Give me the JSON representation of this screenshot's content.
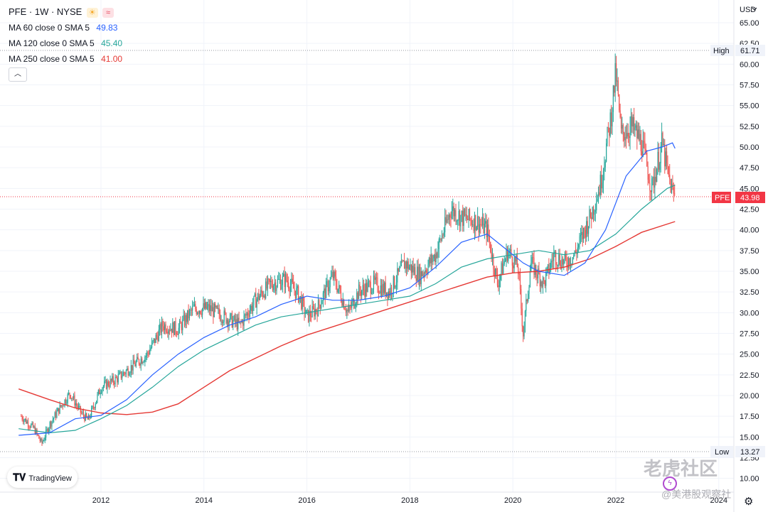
{
  "header": {
    "symbol_line": "PFE · 1W · NYSE",
    "ma": [
      {
        "label": "MA 60 close 0 SMA 5",
        "value": "49.83",
        "color": "#2962ff"
      },
      {
        "label": "MA 120 close 0 SMA 5",
        "value": "45.40",
        "color": "#26a69a"
      },
      {
        "label": "MA 250 close 0 SMA 5",
        "value": "41.00",
        "color": "#e53935"
      }
    ]
  },
  "currency": "USD",
  "price_scale": {
    "ticks": [
      "65.00",
      "62.50",
      "60.00",
      "57.50",
      "55.00",
      "52.50",
      "50.00",
      "47.50",
      "45.00",
      "42.50",
      "40.00",
      "37.50",
      "35.00",
      "32.50",
      "30.00",
      "27.50",
      "25.00",
      "22.50",
      "20.00",
      "17.50",
      "15.00",
      "12.50",
      "10.00"
    ],
    "high_label": "High",
    "high_value": "61.71",
    "low_label": "Low",
    "low_value": "13.27",
    "last_label": "PFE",
    "last_value": "43.98"
  },
  "time_scale": {
    "ticks": [
      "2012",
      "2014",
      "2016",
      "2018",
      "2020",
      "2022",
      "2024"
    ]
  },
  "brand": "TradingView",
  "watermark": {
    "line1": "老虎社区",
    "line2": "@美港股观察社"
  },
  "colors": {
    "up": "#26a69a",
    "down": "#ef5350",
    "ma60": "#2962ff",
    "ma120": "#26a69a",
    "ma250": "#e53935",
    "last": "#f23645"
  },
  "chart_data": {
    "type": "candlestick",
    "symbol": "PFE",
    "interval": "1W",
    "exchange": "NYSE",
    "currency": "USD",
    "ylim": [
      10,
      65
    ],
    "xlim": [
      2010.4,
      2024.4
    ],
    "close_path": [
      [
        2010.45,
        17.5
      ],
      [
        2010.7,
        16.0
      ],
      [
        2010.85,
        14.2
      ],
      [
        2011.0,
        16.5
      ],
      [
        2011.2,
        18.5
      ],
      [
        2011.4,
        20.3
      ],
      [
        2011.6,
        18.0
      ],
      [
        2011.75,
        17.0
      ],
      [
        2012.0,
        21.0
      ],
      [
        2012.3,
        22.0
      ],
      [
        2012.6,
        23.5
      ],
      [
        2012.9,
        25.0
      ],
      [
        2013.2,
        28.5
      ],
      [
        2013.5,
        28.0
      ],
      [
        2013.8,
        30.5
      ],
      [
        2014.1,
        30.5
      ],
      [
        2014.4,
        29.5
      ],
      [
        2014.7,
        28.5
      ],
      [
        2015.0,
        31.5
      ],
      [
        2015.3,
        33.5
      ],
      [
        2015.6,
        34.0
      ],
      [
        2015.85,
        32.0
      ],
      [
        2016.0,
        29.5
      ],
      [
        2016.2,
        30.5
      ],
      [
        2016.5,
        34.5
      ],
      [
        2016.8,
        30.0
      ],
      [
        2017.0,
        32.5
      ],
      [
        2017.3,
        33.5
      ],
      [
        2017.6,
        32.5
      ],
      [
        2017.9,
        36.0
      ],
      [
        2018.2,
        34.5
      ],
      [
        2018.5,
        37.0
      ],
      [
        2018.8,
        42.5
      ],
      [
        2019.0,
        41.5
      ],
      [
        2019.3,
        41.0
      ],
      [
        2019.5,
        40.0
      ],
      [
        2019.7,
        33.5
      ],
      [
        2019.9,
        37.5
      ],
      [
        2020.1,
        35.5
      ],
      [
        2020.2,
        27.5
      ],
      [
        2020.35,
        36.0
      ],
      [
        2020.6,
        33.5
      ],
      [
        2020.8,
        37.0
      ],
      [
        2021.0,
        36.0
      ],
      [
        2021.2,
        37.0
      ],
      [
        2021.5,
        41.5
      ],
      [
        2021.7,
        45.5
      ],
      [
        2021.9,
        53.5
      ],
      [
        2022.0,
        59.0
      ],
      [
        2022.1,
        51.5
      ],
      [
        2022.3,
        52.5
      ],
      [
        2022.5,
        50.5
      ],
      [
        2022.7,
        45.0
      ],
      [
        2022.9,
        50.5
      ],
      [
        2023.0,
        47.0
      ],
      [
        2023.1,
        44.5
      ],
      [
        2023.15,
        43.98
      ]
    ],
    "ma60_path": [
      [
        2010.4,
        15.2
      ],
      [
        2011.0,
        15.5
      ],
      [
        2011.5,
        17.2
      ],
      [
        2012.0,
        17.6
      ],
      [
        2012.5,
        19.5
      ],
      [
        2013.0,
        22.5
      ],
      [
        2013.5,
        25.0
      ],
      [
        2014.0,
        27.0
      ],
      [
        2014.5,
        28.5
      ],
      [
        2015.0,
        29.5
      ],
      [
        2015.5,
        31.0
      ],
      [
        2016.0,
        32.0
      ],
      [
        2016.5,
        31.5
      ],
      [
        2017.0,
        31.5
      ],
      [
        2017.5,
        32.0
      ],
      [
        2018.0,
        33.0
      ],
      [
        2018.5,
        35.5
      ],
      [
        2019.0,
        38.5
      ],
      [
        2019.5,
        39.5
      ],
      [
        2019.8,
        38.0
      ],
      [
        2020.2,
        36.0
      ],
      [
        2020.5,
        35.0
      ],
      [
        2021.0,
        34.5
      ],
      [
        2021.4,
        36.0
      ],
      [
        2021.8,
        40.0
      ],
      [
        2022.2,
        46.5
      ],
      [
        2022.6,
        49.5
      ],
      [
        2022.9,
        50.0
      ],
      [
        2023.1,
        50.5
      ],
      [
        2023.15,
        49.83
      ]
    ],
    "ma120_path": [
      [
        2010.4,
        16.0
      ],
      [
        2011.0,
        15.5
      ],
      [
        2011.5,
        15.8
      ],
      [
        2012.0,
        17.2
      ],
      [
        2012.5,
        18.8
      ],
      [
        2013.0,
        21.0
      ],
      [
        2013.5,
        23.5
      ],
      [
        2014.0,
        25.5
      ],
      [
        2014.5,
        27.0
      ],
      [
        2015.0,
        28.5
      ],
      [
        2015.5,
        29.5
      ],
      [
        2016.0,
        30.0
      ],
      [
        2016.5,
        30.5
      ],
      [
        2017.0,
        31.0
      ],
      [
        2017.5,
        31.5
      ],
      [
        2018.0,
        32.0
      ],
      [
        2018.5,
        33.5
      ],
      [
        2019.0,
        35.5
      ],
      [
        2019.5,
        36.5
      ],
      [
        2020.0,
        37.0
      ],
      [
        2020.5,
        37.5
      ],
      [
        2021.0,
        37.0
      ],
      [
        2021.5,
        37.5
      ],
      [
        2022.0,
        39.5
      ],
      [
        2022.5,
        42.5
      ],
      [
        2023.0,
        45.0
      ],
      [
        2023.15,
        45.4
      ]
    ],
    "ma250_path": [
      [
        2010.4,
        20.8
      ],
      [
        2011.0,
        19.5
      ],
      [
        2011.5,
        18.5
      ],
      [
        2012.0,
        17.9
      ],
      [
        2012.5,
        17.7
      ],
      [
        2013.0,
        18.0
      ],
      [
        2013.5,
        19.0
      ],
      [
        2014.0,
        21.0
      ],
      [
        2014.5,
        23.0
      ],
      [
        2015.0,
        24.5
      ],
      [
        2015.5,
        26.0
      ],
      [
        2016.0,
        27.3
      ],
      [
        2016.5,
        28.3
      ],
      [
        2017.0,
        29.3
      ],
      [
        2017.5,
        30.3
      ],
      [
        2018.0,
        31.3
      ],
      [
        2018.5,
        32.3
      ],
      [
        2019.0,
        33.3
      ],
      [
        2019.5,
        34.3
      ],
      [
        2020.0,
        34.8
      ],
      [
        2020.5,
        35.0
      ],
      [
        2021.0,
        35.5
      ],
      [
        2021.5,
        36.5
      ],
      [
        2022.0,
        38.0
      ],
      [
        2022.5,
        39.7
      ],
      [
        2023.15,
        41.0
      ]
    ]
  }
}
